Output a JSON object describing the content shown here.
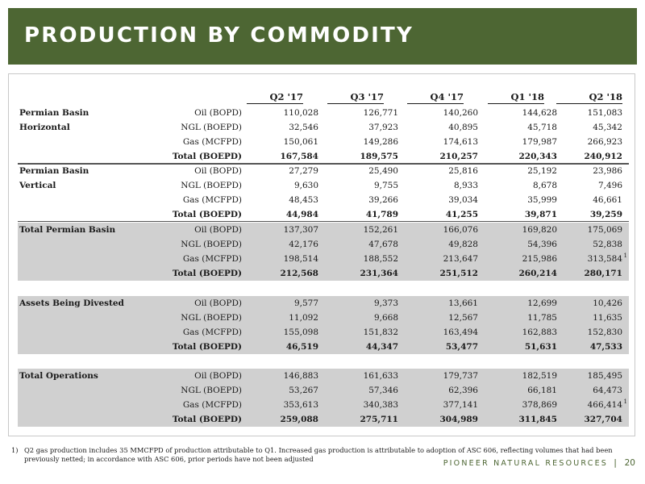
{
  "title": "PRODUCTION BY COMMODITY",
  "columns": [
    "Q2 '17",
    "Q3 '17",
    "Q4 '17",
    "Q1 '18",
    "Q2 '18"
  ],
  "sections": [
    {
      "region_line1": "Permian Basin",
      "region_line2": "Horizontal",
      "shaded": false,
      "rows": [
        {
          "metric": "Oil (BOPD)",
          "values": [
            "110,028",
            "126,771",
            "140,260",
            "144,628",
            "151,083"
          ]
        },
        {
          "metric": "NGL (BOEPD)",
          "values": [
            "32,546",
            "37,923",
            "40,895",
            "45,718",
            "45,342"
          ]
        },
        {
          "metric": "Gas (MCFPD)",
          "values": [
            "150,061",
            "149,286",
            "174,613",
            "179,987",
            "266,923"
          ]
        },
        {
          "metric": "Total (BOEPD)",
          "values": [
            "167,584",
            "189,575",
            "210,257",
            "220,343",
            "240,912"
          ]
        }
      ]
    },
    {
      "region_line1": "Permian Basin",
      "region_line2": "Vertical",
      "shaded": false,
      "rows": [
        {
          "metric": "Oil (BOPD)",
          "values": [
            "27,279",
            "25,490",
            "25,816",
            "25,192",
            "23,986"
          ]
        },
        {
          "metric": "NGL (BOEPD)",
          "values": [
            "9,630",
            "9,755",
            "8,933",
            "8,678",
            "7,496"
          ]
        },
        {
          "metric": "Gas (MCFPD)",
          "values": [
            "48,453",
            "39,266",
            "39,034",
            "35,999",
            "46,661"
          ]
        },
        {
          "metric": "Total (BOEPD)",
          "values": [
            "44,984",
            "41,789",
            "41,255",
            "39,871",
            "39,259"
          ]
        }
      ]
    },
    {
      "region_line1": "Total Permian Basin",
      "region_line2": "",
      "shaded": true,
      "rows": [
        {
          "metric": "Oil (BOPD)",
          "values": [
            "137,307",
            "152,261",
            "166,076",
            "169,820",
            "175,069"
          ]
        },
        {
          "metric": "NGL (BOEPD)",
          "values": [
            "42,176",
            "47,678",
            "49,828",
            "54,396",
            "52,838"
          ]
        },
        {
          "metric": "Gas (MCFPD)",
          "values": [
            "198,514",
            "188,552",
            "213,647",
            "215,986",
            "313,584"
          ],
          "note": "1"
        },
        {
          "metric": "Total (BOEPD)",
          "values": [
            "212,568",
            "231,364",
            "251,512",
            "260,214",
            "280,171"
          ]
        }
      ]
    },
    {
      "region_line1": "Assets Being Divested",
      "region_line2": "",
      "shaded": true,
      "rows": [
        {
          "metric": "Oil (BOPD)",
          "values": [
            "9,577",
            "9,373",
            "13,661",
            "12,699",
            "10,426"
          ]
        },
        {
          "metric": "NGL (BOEPD)",
          "values": [
            "11,092",
            "9,668",
            "12,567",
            "11,785",
            "11,635"
          ]
        },
        {
          "metric": "Gas (MCFPD)",
          "values": [
            "155,098",
            "151,832",
            "163,494",
            "162,883",
            "152,830"
          ]
        },
        {
          "metric": "Total (BOEPD)",
          "values": [
            "46,519",
            "44,347",
            "53,477",
            "51,631",
            "47,533"
          ]
        }
      ]
    },
    {
      "region_line1": "Total Operations",
      "region_line2": "",
      "shaded": true,
      "rows": [
        {
          "metric": "Oil (BOPD)",
          "values": [
            "146,883",
            "161,633",
            "179,737",
            "182,519",
            "185,495"
          ]
        },
        {
          "metric": "NGL (BOEPD)",
          "values": [
            "53,267",
            "57,346",
            "62,396",
            "66,181",
            "64,473"
          ]
        },
        {
          "metric": "Gas (MCFPD)",
          "values": [
            "353,613",
            "340,383",
            "377,141",
            "378,869",
            "466,414"
          ],
          "note": "1"
        },
        {
          "metric": "Total (BOEPD)",
          "values": [
            "259,088",
            "275,711",
            "304,989",
            "311,845",
            "327,704"
          ]
        }
      ]
    }
  ],
  "footnote": {
    "number": "1)",
    "text": "Q2 gas production includes 35 MMCFPD of production attributable to Q1.  Increased gas production is attributable to adoption of ASC 606, reflecting volumes that had been previously netted; in accordance with ASC 606, prior periods have not been adjusted"
  },
  "footer": {
    "brand": "PIONEER NATURAL RESOURCES",
    "separator": "|",
    "page": "20"
  },
  "colors": {
    "title_bar": "#4d6633",
    "shading": "#d0d0d0",
    "brand": "#4d6633"
  }
}
